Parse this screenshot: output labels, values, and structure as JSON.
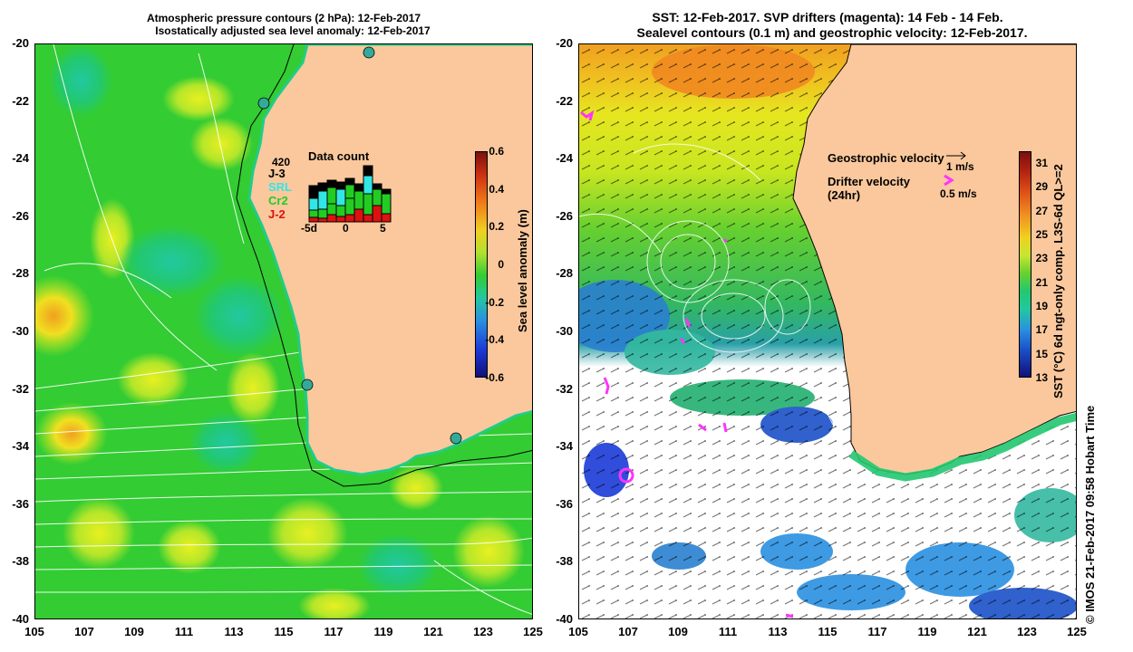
{
  "left_panel": {
    "title_line1": "Atmospheric pressure contours (2 hPa): 12-Feb-2017",
    "title_line2": "Isostatically adjusted sea level anomaly: 12-Feb-2017",
    "colorbar": {
      "label": "Sea level anomaly (m)",
      "ticks": [
        "0.6",
        "0.4",
        "0.2",
        "0",
        "-0.2",
        "-0.4",
        "-0.6"
      ],
      "range": [
        -0.6,
        0.6
      ]
    },
    "data_count": {
      "title": "Data count",
      "total": "420",
      "missions": [
        {
          "name": "J-3",
          "color": "#000000"
        },
        {
          "name": "SRL",
          "color": "#33e6e6"
        },
        {
          "name": "Cr2",
          "color": "#22cc22"
        },
        {
          "name": "J-2",
          "color": "#dd1111"
        }
      ],
      "x_ticks": [
        "-5d",
        "0",
        "5"
      ]
    }
  },
  "right_panel": {
    "title_line1": "SST: 12-Feb-2017. SVP drifters (magenta): 14 Feb - 14 Feb.",
    "title_line2": "Sealevel contours (0.1 m) and geostrophic velocity: 12-Feb-2017.",
    "legend": {
      "geostrophic_label": "Geostrophic velocity",
      "geostrophic_scale": "1 m/s",
      "drifter_label": "Drifter velocity",
      "drifter_sub": "(24hr)",
      "drifter_scale": "0.5 m/s"
    },
    "colorbar": {
      "label": "SST (°C) 6d ngt-only comp. L3S-6d QL>=2",
      "ticks": [
        "31",
        "29",
        "27",
        "25",
        "23",
        "21",
        "19",
        "17",
        "15",
        "13"
      ],
      "range": [
        13,
        32
      ]
    }
  },
  "axes": {
    "lat_ticks": [
      "-20",
      "-22",
      "-24",
      "-26",
      "-28",
      "-30",
      "-32",
      "-34",
      "-36",
      "-38",
      "-40"
    ],
    "lon_ticks": [
      "105",
      "107",
      "109",
      "111",
      "113",
      "115",
      "117",
      "119",
      "121",
      "123",
      "125"
    ]
  },
  "footer": "© IMOS 21-Feb-2017 09:58 Hobart Time",
  "colors": {
    "land": "#fac89c",
    "ocean_green": "#33cc33",
    "drifter": "#ff33ff",
    "contour": "#ffffff"
  }
}
